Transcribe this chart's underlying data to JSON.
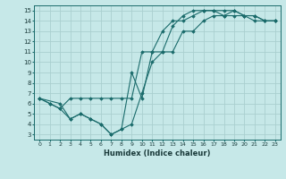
{
  "xlabel": "Humidex (Indice chaleur)",
  "xlim": [
    -0.5,
    23.5
  ],
  "ylim": [
    2.5,
    15.5
  ],
  "xticks": [
    0,
    1,
    2,
    3,
    4,
    5,
    6,
    7,
    8,
    9,
    10,
    11,
    12,
    13,
    14,
    15,
    16,
    17,
    18,
    19,
    20,
    21,
    22,
    23
  ],
  "yticks": [
    3,
    4,
    5,
    6,
    7,
    8,
    9,
    10,
    11,
    12,
    13,
    14,
    15
  ],
  "bg_color": "#c6e8e8",
  "grid_color": "#aacfcf",
  "line_color": "#1a6b6b",
  "line1_x": [
    0,
    1,
    2,
    3,
    4,
    5,
    6,
    7,
    8,
    9,
    10,
    11,
    12,
    13,
    14,
    15,
    16,
    17,
    18,
    19,
    20,
    21,
    22,
    23
  ],
  "line1_y": [
    6.5,
    6.0,
    5.5,
    6.5,
    6.5,
    6.5,
    6.5,
    6.5,
    6.5,
    6.5,
    11.0,
    11.0,
    13.0,
    14.0,
    14.0,
    14.5,
    15.0,
    15.0,
    15.0,
    15.0,
    14.5,
    14.5,
    14.0,
    14.0
  ],
  "line2_x": [
    0,
    1,
    2,
    3,
    4,
    5,
    6,
    7,
    8,
    9,
    10,
    11,
    12,
    13,
    14,
    15,
    16,
    17,
    18,
    19,
    20,
    21,
    22,
    23
  ],
  "line2_y": [
    6.5,
    6.0,
    5.5,
    4.5,
    5.0,
    4.5,
    4.0,
    3.0,
    3.5,
    9.0,
    6.5,
    11.0,
    11.0,
    13.5,
    14.5,
    15.0,
    15.0,
    15.0,
    14.5,
    14.5,
    14.5,
    14.5,
    14.0,
    14.0
  ],
  "line3_x": [
    0,
    2,
    3,
    4,
    5,
    6,
    7,
    8,
    9,
    10,
    11,
    12,
    13,
    14,
    15,
    16,
    17,
    18,
    19,
    20,
    21,
    22,
    23
  ],
  "line3_y": [
    6.5,
    6.0,
    4.5,
    5.0,
    4.5,
    4.0,
    3.0,
    3.5,
    4.0,
    7.0,
    10.0,
    11.0,
    11.0,
    13.0,
    13.0,
    14.0,
    14.5,
    14.5,
    15.0,
    14.5,
    14.0,
    14.0,
    14.0
  ]
}
